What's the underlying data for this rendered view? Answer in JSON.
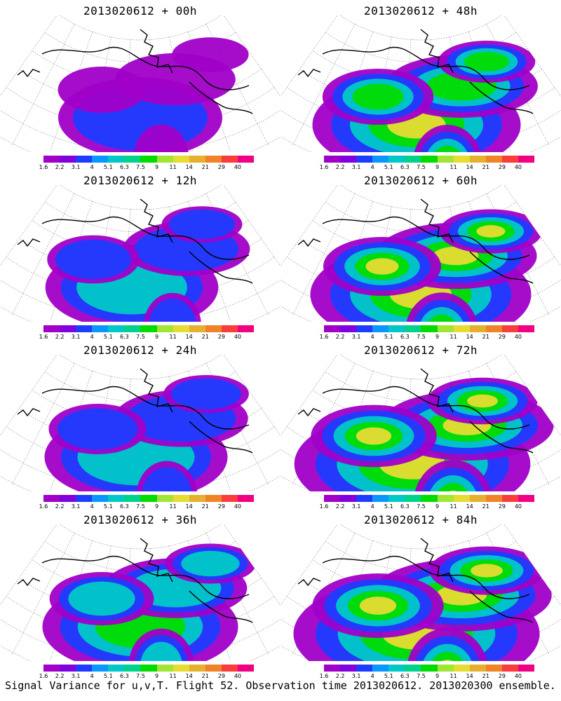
{
  "caption": "Signal Variance for u,v,T. Flight 52. Observation time 2013020612. 2013020300 ensemble.",
  "colorbar": {
    "labels": [
      "1.6",
      "2.2",
      "3.1",
      "4",
      "5.1",
      "6.3",
      "7.5",
      "9",
      "11",
      "14",
      "21",
      "29",
      "40"
    ],
    "colors": [
      "#a000c8",
      "#8200dc",
      "#1e3cff",
      "#0a96ff",
      "#00c8c8",
      "#00d28c",
      "#00dc00",
      "#a0e632",
      "#e6dc32",
      "#e6af2d",
      "#f08228",
      "#fa3c3c",
      "#f00082"
    ]
  },
  "panels": [
    {
      "title": "2013020612 + 00h",
      "intensity": 0.05
    },
    {
      "title": "2013020612 + 48h",
      "intensity": 0.4
    },
    {
      "title": "2013020612 + 12h",
      "intensity": 0.12
    },
    {
      "title": "2013020612 + 60h",
      "intensity": 0.5
    },
    {
      "title": "2013020612 + 24h",
      "intensity": 0.2
    },
    {
      "title": "2013020612 + 72h",
      "intensity": 0.62
    },
    {
      "title": "2013020612 + 36h",
      "intensity": 0.3
    },
    {
      "title": "2013020612 + 84h",
      "intensity": 0.7
    }
  ]
}
